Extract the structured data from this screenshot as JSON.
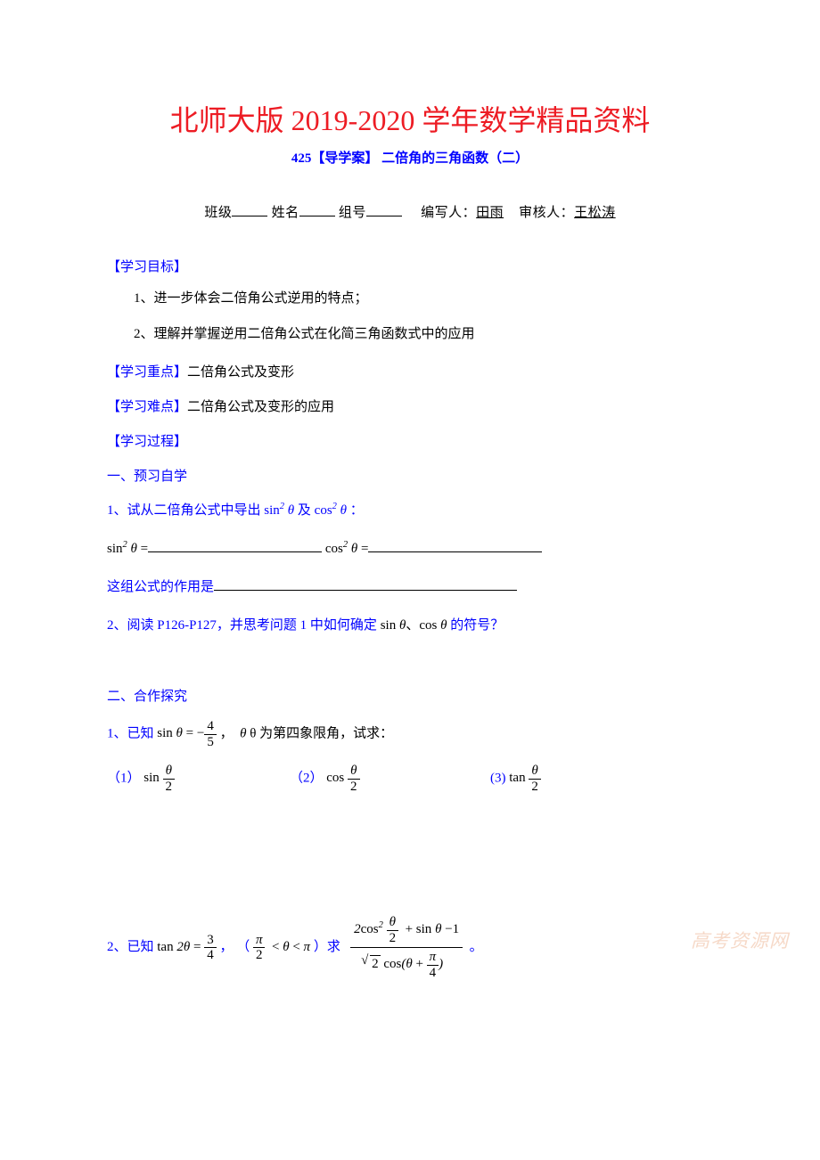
{
  "title": "北师大版 2019-2020 学年数学精品资料",
  "subtitle": "425【导学案】 二倍角的三角函数（二）",
  "byline": {
    "class_label": "班级",
    "name_label": "姓名",
    "group_label": "组号",
    "writer_label": "编写人：",
    "writer": "田雨",
    "reviewer_label": "审核人：",
    "reviewer": "王松涛"
  },
  "sections": {
    "objective_head": "【学习目标】",
    "objective_1": "1、进一步体会二倍角公式逆用的特点；",
    "objective_2": "2、理解并掌握逆用二倍角公式在化简三角函数式中的应用",
    "keypoint_head": "【学习重点】",
    "keypoint_body": "二倍角公式及变形",
    "difficulty_head": "【学习难点】",
    "difficulty_body": "二倍角公式及变形的应用",
    "process_head": "【学习过程】",
    "preview_head": "一、预习自学",
    "preview_1_prefix": "1、试从二倍角公式中导出",
    "preview_1_mid": "及",
    "preview_1_suffix": "：",
    "sin2_eq": "=",
    "cos2_eq": "=",
    "usage_prefix": "这组公式的作用是",
    "preview_2_prefix": "2、阅读 P126-P127，并思考问题 1 中如何确定",
    "preview_2_suffix": "的符号？",
    "coop_head": "二、合作探究",
    "q1_prefix": "1、已知",
    "q1_cond": "θ 为第四象限角，试求：",
    "q1_a": "（1）",
    "q1_b": "（2）",
    "q1_c": "(3)",
    "q2_prefix": "2、已知",
    "q2_range_l": "（",
    "q2_range_r": "）求",
    "q2_end": "。"
  },
  "math": {
    "sin": "sin",
    "cos": "cos",
    "tan": "tan",
    "theta": "θ",
    "pi": "π",
    "comma": "、",
    "sep_comma": "，",
    "minus": "−",
    "plus": "+",
    "minus1": "−1",
    "sq": "2",
    "four": "4",
    "five": "5",
    "three": "3",
    "two": "2",
    "half_den": "2",
    "lt": "<",
    "sqrt2": "2",
    "eq": "="
  },
  "watermark": "高考资源网",
  "colors": {
    "title": "#ed1c24",
    "blue": "#0000ff",
    "text": "#000000",
    "watermark": "#f6d9c8",
    "background": "#ffffff"
  }
}
